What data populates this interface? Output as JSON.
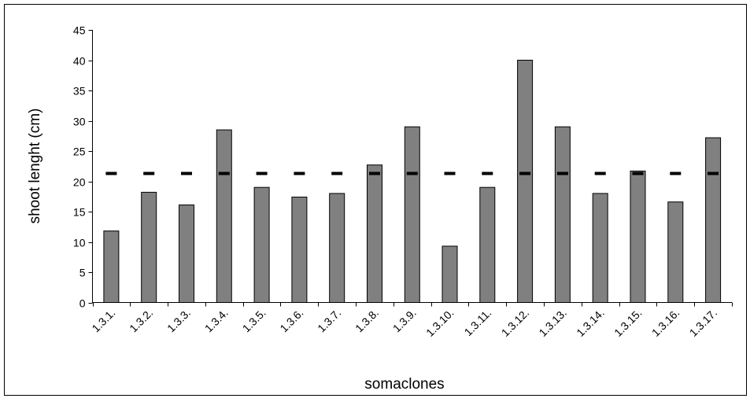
{
  "chart_data": {
    "type": "bar",
    "title": "",
    "xlabel": "somaclones",
    "ylabel": "shoot lenght (cm)",
    "ylim": [
      0,
      45
    ],
    "yticks": [
      0,
      5,
      10,
      15,
      20,
      25,
      30,
      35,
      40,
      45
    ],
    "categories": [
      "1.3.1.",
      "1.3.2.",
      "1.3.3.",
      "1.3.4.",
      "1.3.5.",
      "1.3.6.",
      "1.3.7.",
      "1.3.8.",
      "1.3.9.",
      "1.3.10.",
      "1.3.11.",
      "1.3.12.",
      "1.3.13.",
      "1.3.14.",
      "1.3.15.",
      "1.3.16.",
      "1.3.17."
    ],
    "values": [
      11.8,
      18.2,
      16.1,
      28.5,
      19.0,
      17.4,
      18.0,
      22.7,
      29.0,
      9.3,
      19.0,
      40.0,
      29.0,
      18.0,
      21.7,
      16.6,
      27.2
    ],
    "reference_line": {
      "value": 21.3,
      "style": "dashed"
    },
    "grid": false,
    "legend": "none",
    "colors": {
      "bar_fill": "#808080",
      "bar_stroke": "#000000",
      "reference_line": "#000000"
    }
  }
}
